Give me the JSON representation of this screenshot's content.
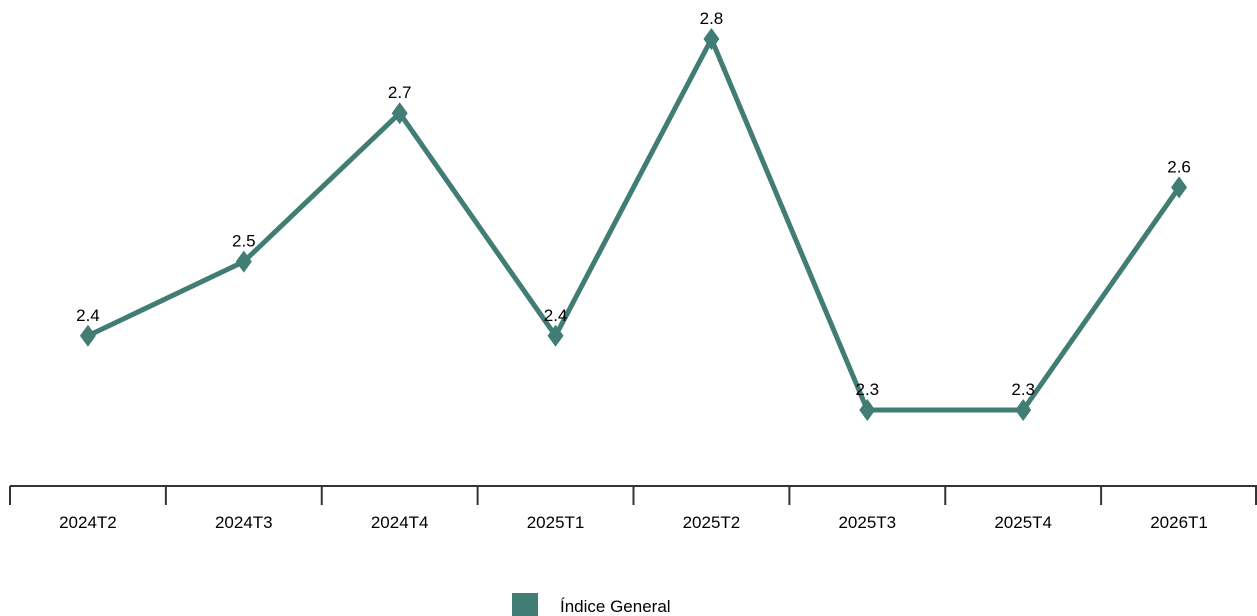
{
  "chart_data": {
    "type": "line",
    "categories": [
      "2024T2",
      "2024T3",
      "2024T4",
      "2025T1",
      "2025T2",
      "2025T3",
      "2025T4",
      "2026T1"
    ],
    "series": [
      {
        "name": "Índice General",
        "values": [
          2.4,
          2.5,
          2.7,
          2.4,
          2.8,
          2.3,
          2.3,
          2.6
        ],
        "color": "#417d74",
        "marker": "diamond"
      }
    ],
    "data_labels": [
      "2.4",
      "2.5",
      "2.7",
      "2.4",
      "2.8",
      "2.3",
      "2.3",
      "2.6"
    ],
    "ylim": [
      1.9,
      2.9
    ],
    "y_axis_visible": false,
    "grid": false,
    "legend": {
      "position": "bottom-center",
      "label": "Índice General",
      "color": "#417d74"
    },
    "colors": {
      "line": "#417d74",
      "axis": "#333333",
      "text": "#000000"
    }
  }
}
